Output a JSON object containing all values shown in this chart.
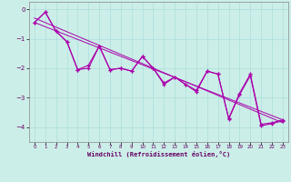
{
  "xlabel": "Windchill (Refroidissement éolien,°C)",
  "bg_color": "#cceee8",
  "line_color": "#aa00aa",
  "ylim": [
    -4.5,
    0.25
  ],
  "xlim": [
    -0.5,
    23.5
  ],
  "yticks": [
    0,
    -1,
    -2,
    -3,
    -4
  ],
  "xticks": [
    0,
    1,
    2,
    3,
    4,
    5,
    6,
    7,
    8,
    9,
    10,
    11,
    12,
    13,
    14,
    15,
    16,
    17,
    18,
    19,
    20,
    21,
    22,
    23
  ],
  "series1_x": [
    0,
    1,
    2,
    3,
    4,
    5,
    6,
    7,
    8,
    9,
    10,
    11,
    12,
    13,
    14,
    15,
    16,
    17,
    18,
    19,
    20,
    21,
    22,
    23
  ],
  "series1_y": [
    -0.45,
    -0.1,
    -0.75,
    -1.1,
    -2.05,
    -2.0,
    -1.25,
    -2.05,
    -2.0,
    -2.1,
    -1.6,
    -2.0,
    -2.5,
    -2.3,
    -2.55,
    -2.75,
    -2.1,
    -2.2,
    -3.7,
    -2.85,
    -2.2,
    -3.9,
    -3.85,
    -3.75
  ],
  "series2_x": [
    0,
    1,
    2,
    3,
    4,
    5,
    6,
    7,
    8,
    9,
    10,
    11,
    12,
    13,
    14,
    15,
    16,
    17,
    18,
    19,
    20,
    21,
    22,
    23
  ],
  "series2_y": [
    -0.45,
    -0.1,
    -0.75,
    -1.1,
    -2.05,
    -1.9,
    -1.25,
    -2.05,
    -2.0,
    -2.1,
    -1.6,
    -2.0,
    -2.55,
    -2.3,
    -2.55,
    -2.8,
    -2.1,
    -2.2,
    -3.72,
    -2.9,
    -2.25,
    -3.95,
    -3.88,
    -3.78
  ],
  "trend1_x": [
    0,
    23
  ],
  "trend1_y": [
    -0.3,
    -3.85
  ],
  "trend2_x": [
    0,
    23
  ],
  "trend2_y": [
    -0.45,
    -3.75
  ]
}
